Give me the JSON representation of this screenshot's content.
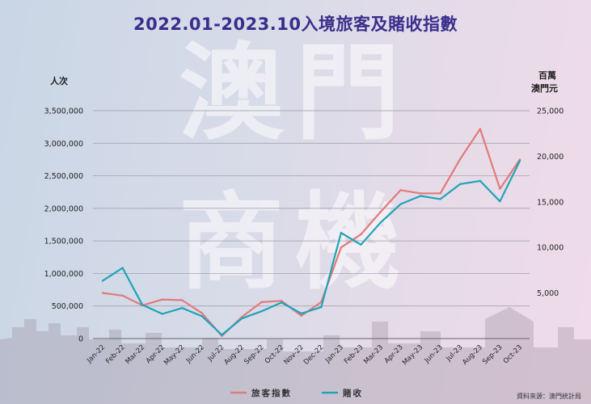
{
  "watermark": [
    "澳門",
    "商機"
  ],
  "chart_data": {
    "type": "line",
    "title": "2022.01-2023.10入境旅客及賭收指數",
    "ylabel_left": "人次",
    "ylabel_right": [
      "百萬",
      "澳門元"
    ],
    "ylim_left": [
      0,
      3500000
    ],
    "ylim_right": [
      0,
      25000
    ],
    "yticks_left": [
      "0",
      "500,000",
      "1,000,000",
      "1,500,000",
      "2,000,000",
      "2,500,000",
      "3,000,000",
      "3,500,000"
    ],
    "yticks_right": [
      "5,000",
      "10,000",
      "15,000",
      "20,000",
      "25,000"
    ],
    "categories": [
      "Jan-22",
      "Feb-22",
      "Mar-22",
      "Apr-22",
      "May-22",
      "Jun-22",
      "Jul-22",
      "Aug-22",
      "Sep-22",
      "Oct-22",
      "Nov-22",
      "Dec-22",
      "Jan-23",
      "Feb-23",
      "Mar-23",
      "Apr-23",
      "May-23",
      "Jun-23",
      "Jul-23",
      "Aug-23",
      "Sep-23",
      "Oct-23"
    ],
    "series": [
      {
        "name": "旅客指數",
        "axis": "left",
        "color": "#e07b7b",
        "values": [
          700000,
          660000,
          510000,
          600000,
          590000,
          390000,
          40000,
          330000,
          560000,
          580000,
          350000,
          560000,
          1400000,
          1600000,
          1950000,
          2280000,
          2230000,
          2230000,
          2760000,
          3220000,
          2300000,
          2750000
        ]
      },
      {
        "name": "賭收",
        "axis": "right",
        "color": "#1ea4b8",
        "values": [
          6350,
          7750,
          3700,
          2700,
          3350,
          2450,
          400,
          2200,
          3000,
          3950,
          2750,
          3450,
          11600,
          10300,
          12750,
          14750,
          15650,
          15300,
          16950,
          17300,
          15050,
          19500
        ]
      }
    ],
    "legend_position": "bottom-center",
    "grid": true
  },
  "source": "資料來源：澳門統計局"
}
